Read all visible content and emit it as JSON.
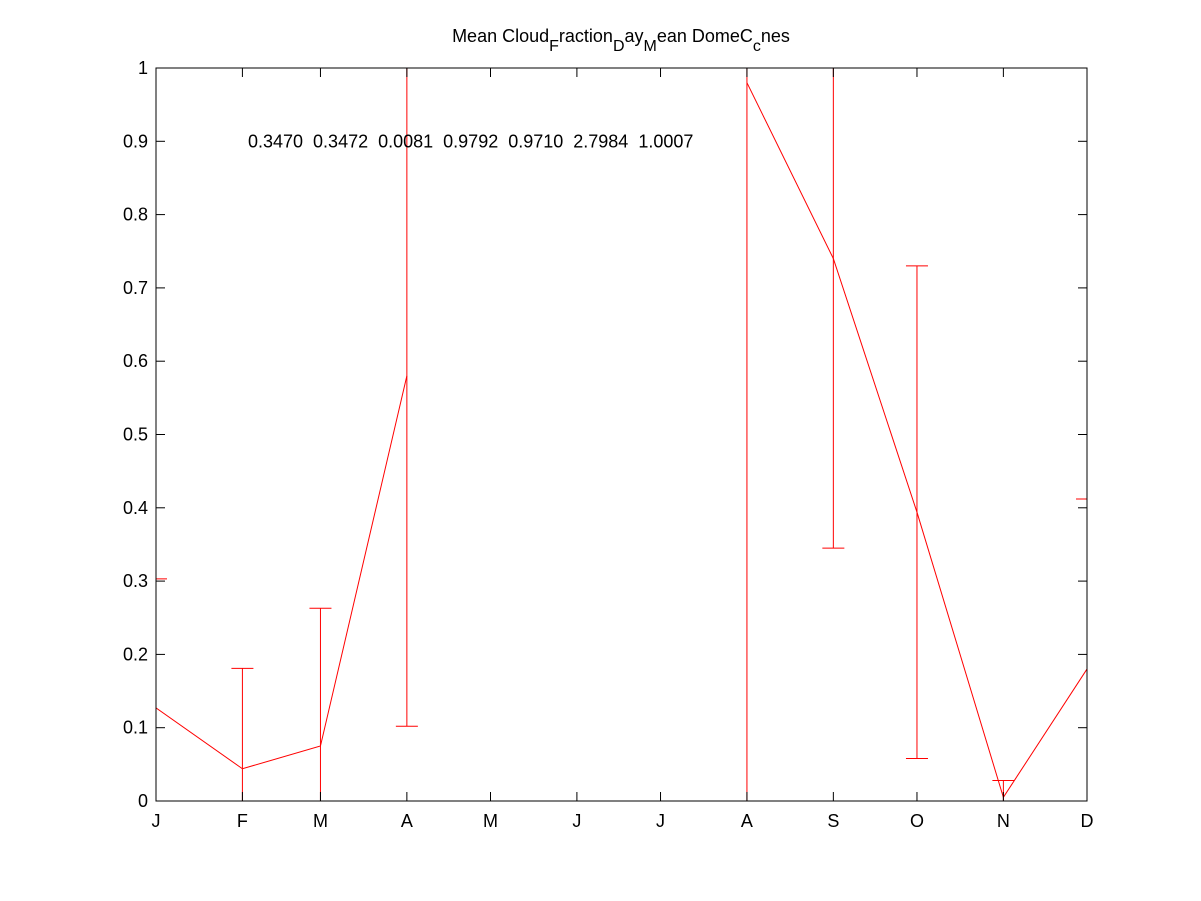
{
  "chart_data": {
    "type": "errorbar-line",
    "title": [
      {
        "text": "Mean Cloud"
      },
      {
        "text": "F",
        "sub": true
      },
      {
        "text": "raction"
      },
      {
        "text": "D",
        "sub": true
      },
      {
        "text": "ay"
      },
      {
        "text": "M",
        "sub": true
      },
      {
        "text": "ean DomeC"
      },
      {
        "text": "c",
        "sub": true
      },
      {
        "text": "nes"
      }
    ],
    "annotation": {
      "text": "0.3470  0.3472  0.0081  0.9792  0.9710  2.7984  1.0007",
      "x": 34,
      "y": 0.9
    },
    "x": [
      1,
      32,
      60,
      91,
      121,
      152,
      182,
      213,
      244,
      274,
      305,
      335
    ],
    "series": [
      {
        "color": "#ff0000",
        "values": [
          0.127,
          0.044,
          0.075,
          0.58,
          null,
          null,
          null,
          0.98,
          0.74,
          0.394,
          0.005,
          0.18
        ],
        "errors": [
          0.176,
          0.137,
          0.188,
          0.478,
          null,
          null,
          null,
          1.0,
          0.395,
          0.336,
          0.023,
          0.232
        ]
      }
    ],
    "xlim": [
      1,
      335
    ],
    "xticks": [
      {
        "value": 1,
        "label": "J"
      },
      {
        "value": 32,
        "label": "F"
      },
      {
        "value": 60,
        "label": "M"
      },
      {
        "value": 91,
        "label": "A"
      },
      {
        "value": 121,
        "label": "M"
      },
      {
        "value": 152,
        "label": "J"
      },
      {
        "value": 182,
        "label": "J"
      },
      {
        "value": 213,
        "label": "A"
      },
      {
        "value": 244,
        "label": "S"
      },
      {
        "value": 274,
        "label": "O"
      },
      {
        "value": 305,
        "label": "N"
      },
      {
        "value": 335,
        "label": "D"
      }
    ],
    "ylim": [
      0,
      1
    ],
    "yticks": [
      0,
      0.1,
      0.2,
      0.3,
      0.4,
      0.5,
      0.6,
      0.7,
      0.8,
      0.9,
      1
    ]
  }
}
